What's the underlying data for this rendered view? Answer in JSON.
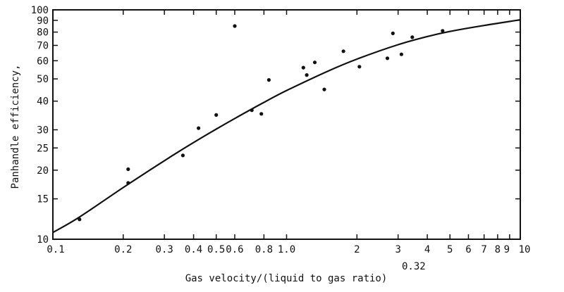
{
  "chart_data": {
    "type": "scatter",
    "title": "",
    "xlabel": "Gas velocity/(liquid to gas ratio)",
    "xlabel_exponent": "0.32",
    "ylabel": "Panhandle efficiency,",
    "x_scale": "log",
    "y_scale": "log",
    "xlim": [
      0.1,
      10
    ],
    "ylim": [
      10,
      100
    ],
    "grid": false,
    "legend": "none",
    "x_ticks": [
      {
        "value": 0.1,
        "label": "0.1"
      },
      {
        "value": 0.2,
        "label": "0.2"
      },
      {
        "value": 0.3,
        "label": "0.3"
      },
      {
        "value": 0.4,
        "label": "0.4"
      },
      {
        "value": 0.5,
        "label": "0.5"
      },
      {
        "value": 0.6,
        "label": "0.6"
      },
      {
        "value": 0.8,
        "label": "0.8"
      },
      {
        "value": 1.0,
        "label": "1.0"
      },
      {
        "value": 2,
        "label": "2"
      },
      {
        "value": 3,
        "label": "3"
      },
      {
        "value": 4,
        "label": "4"
      },
      {
        "value": 5,
        "label": "5"
      },
      {
        "value": 6,
        "label": "6"
      },
      {
        "value": 7,
        "label": "7"
      },
      {
        "value": 8,
        "label": "8"
      },
      {
        "value": 9,
        "label": "9"
      },
      {
        "value": 10,
        "label": "10"
      }
    ],
    "y_ticks": [
      {
        "value": 10,
        "label": "10"
      },
      {
        "value": 15,
        "label": "15"
      },
      {
        "value": 20,
        "label": "20"
      },
      {
        "value": 25,
        "label": "25"
      },
      {
        "value": 30,
        "label": "30"
      },
      {
        "value": 40,
        "label": "40"
      },
      {
        "value": 50,
        "label": "50"
      },
      {
        "value": 60,
        "label": "60"
      },
      {
        "value": 70,
        "label": "70"
      },
      {
        "value": 80,
        "label": "80"
      },
      {
        "value": 90,
        "label": "90"
      },
      {
        "value": 100,
        "label": "100"
      }
    ],
    "points": [
      {
        "x": 0.13,
        "y": 12.2
      },
      {
        "x": 0.21,
        "y": 20.2
      },
      {
        "x": 0.21,
        "y": 17.6
      },
      {
        "x": 0.36,
        "y": 23.2
      },
      {
        "x": 0.42,
        "y": 30.5
      },
      {
        "x": 0.5,
        "y": 34.8
      },
      {
        "x": 0.6,
        "y": 85
      },
      {
        "x": 0.71,
        "y": 36.5
      },
      {
        "x": 0.78,
        "y": 35.2
      },
      {
        "x": 0.84,
        "y": 49.5
      },
      {
        "x": 1.18,
        "y": 56
      },
      {
        "x": 1.22,
        "y": 52
      },
      {
        "x": 1.32,
        "y": 59
      },
      {
        "x": 1.45,
        "y": 45
      },
      {
        "x": 1.75,
        "y": 66
      },
      {
        "x": 2.05,
        "y": 56.5
      },
      {
        "x": 2.7,
        "y": 61.5
      },
      {
        "x": 2.85,
        "y": 79
      },
      {
        "x": 3.1,
        "y": 64
      },
      {
        "x": 3.45,
        "y": 76
      },
      {
        "x": 4.65,
        "y": 81
      }
    ],
    "curve": {
      "x": [
        0.1,
        0.13,
        0.2,
        0.3,
        0.4,
        0.5,
        0.6,
        0.8,
        1.0,
        1.5,
        2.0,
        3.0,
        4.0,
        5.0,
        7.0,
        10.0
      ],
      "y": [
        10.7,
        12.5,
        16.8,
        22.0,
        26.4,
        30.2,
        33.6,
        39.5,
        44.5,
        54.0,
        61.0,
        70.5,
        76.5,
        80.5,
        85.5,
        90.5
      ]
    }
  }
}
